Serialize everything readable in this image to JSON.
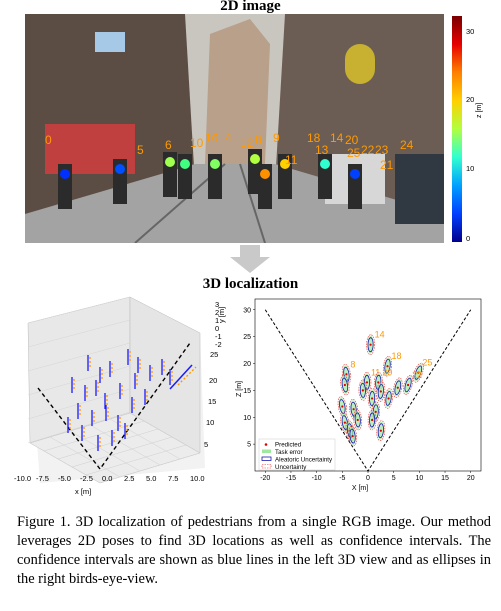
{
  "figure": {
    "top_title": "2D image",
    "mid_title": "3D localization",
    "caption": "Figure 1. 3D localization of pedestrians from a single RGB image. Our method leverages 2D poses to find 3D locations as well as confidence intervals. The confidence intervals are shown as blue lines in the left 3D view and as ellipses in the right birds-eye-view."
  },
  "image_overlay": {
    "labels": [
      "0",
      "4",
      "5",
      "6",
      "8",
      "9",
      "10",
      "11",
      "12",
      "13",
      "14",
      "16",
      "18",
      "20",
      "21",
      "22",
      "23",
      "24",
      "25"
    ],
    "colorbar": {
      "label": "z [m]",
      "ticks": [
        "0",
        "10",
        "20",
        "30"
      ],
      "min": 0,
      "max": 33
    }
  },
  "chart_data": [
    {
      "type": "scatter",
      "view": "3d",
      "x_ticks": [
        "-10.0",
        "-7.5",
        "-5.0",
        "-2.5",
        "0.0",
        "2.5",
        "5.0",
        "7.5",
        "10.0"
      ],
      "xlabel": "x [m]",
      "z_ticks": [
        "5",
        "10",
        "15",
        "20",
        "25"
      ],
      "z_label": "",
      "y_ticks": [
        "3",
        "2",
        "1",
        "0",
        "-1",
        "-2"
      ],
      "ylabel": "y [m]",
      "xlim": [
        -10,
        10
      ],
      "zlim": [
        0,
        25
      ],
      "ylim": [
        -2,
        3
      ]
    },
    {
      "type": "scatter",
      "view": "birds-eye",
      "xlabel": "X [m]",
      "ylabel": "Z [m]",
      "x_ticks": [
        "-20",
        "-15",
        "-10",
        "-5",
        "0",
        "5",
        "10",
        "15",
        "20"
      ],
      "y_ticks": [
        "5",
        "10",
        "15",
        "20",
        "25",
        "30"
      ],
      "xlim": [
        -22,
        22
      ],
      "ylim": [
        0,
        32
      ],
      "legend": [
        "Predicted",
        "Task error",
        "Aleatoric Uncertainty",
        "Uncertainty"
      ],
      "legend_position": "bottom-left",
      "points": [
        {
          "label": "14",
          "x": 0.5,
          "z": 23.5
        },
        {
          "label": "18",
          "x": 3.8,
          "z": 19.5
        },
        {
          "label": "25",
          "x": 9.8,
          "z": 18.3
        },
        {
          "label": "8",
          "x": -4.2,
          "z": 18.0
        },
        {
          "label": "11",
          "x": -0.2,
          "z": 16.5
        },
        {
          "label": "20",
          "x": 2.0,
          "z": 16.5
        },
        {
          "label": "22",
          "x": 7.8,
          "z": 16.0
        },
        {
          "label": "",
          "x": 5.8,
          "z": 15.5
        },
        {
          "label": "",
          "x": 2.5,
          "z": 14.8
        },
        {
          "label": "",
          "x": -1.0,
          "z": 15.0
        },
        {
          "label": "",
          "x": -4.5,
          "z": 16.0
        },
        {
          "label": "",
          "x": 0.8,
          "z": 13.5
        },
        {
          "label": "",
          "x": 4.0,
          "z": 13.5
        },
        {
          "label": "",
          "x": -5.0,
          "z": 12.0
        },
        {
          "label": "",
          "x": -2.8,
          "z": 11.5
        },
        {
          "label": "",
          "x": 1.5,
          "z": 11.0
        },
        {
          "label": "",
          "x": -4.5,
          "z": 9.0
        },
        {
          "label": "",
          "x": -2.0,
          "z": 9.5
        },
        {
          "label": "",
          "x": 0.8,
          "z": 9.5
        },
        {
          "label": "",
          "x": -3.5,
          "z": 7.5
        },
        {
          "label": "",
          "x": 2.5,
          "z": 7.5
        },
        {
          "label": "",
          "x": -3.0,
          "z": 6.5
        }
      ]
    }
  ]
}
